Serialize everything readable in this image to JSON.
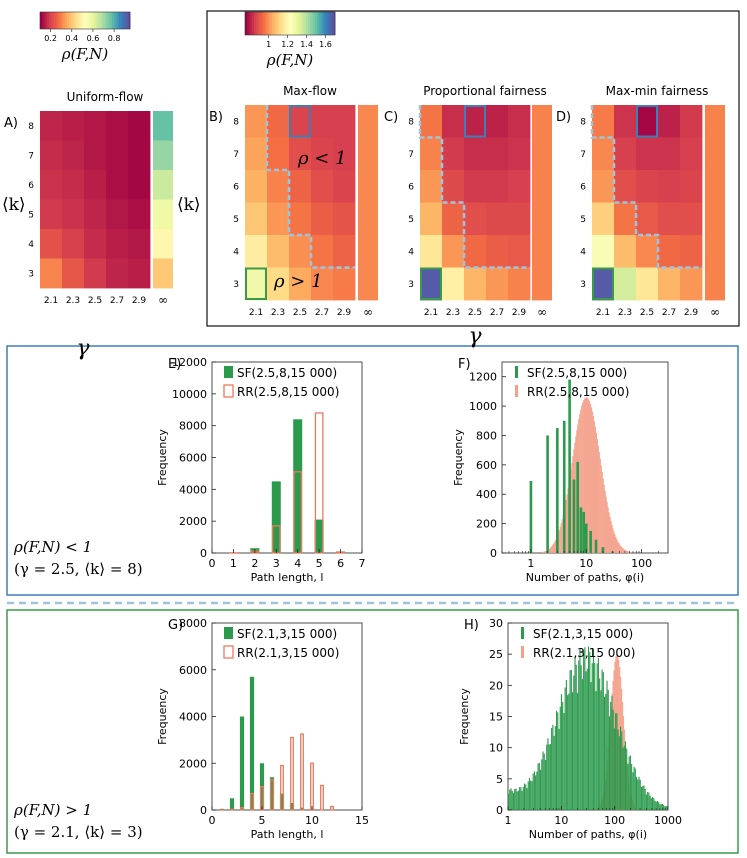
{
  "chart_data": [
    {
      "id": "A",
      "type": "heatmap",
      "panel_letter": "A)",
      "title": "Uniform-flow",
      "xlabel": "γ",
      "ylabel": "⟨k⟩",
      "x_ticks": [
        "2.1",
        "2.3",
        "2.5",
        "2.7",
        "2.9"
      ],
      "inf_label": "∞",
      "y_ticks": [
        "8",
        "7",
        "6",
        "5",
        "4",
        "3"
      ],
      "colorbar": {
        "label": "ρ(F,N)",
        "ticks": [
          "0.2",
          "0.4",
          "0.6",
          "0.8"
        ],
        "range": [
          0.1,
          0.95
        ],
        "colormap": "Spectral"
      },
      "rows": [
        [
          0.15,
          0.14,
          0.13,
          0.12,
          0.11
        ],
        [
          0.16,
          0.15,
          0.13,
          0.12,
          0.11
        ],
        [
          0.17,
          0.16,
          0.14,
          0.12,
          0.11
        ],
        [
          0.18,
          0.17,
          0.15,
          0.13,
          0.12
        ],
        [
          0.22,
          0.19,
          0.16,
          0.14,
          0.13
        ],
        [
          0.3,
          0.23,
          0.18,
          0.15,
          0.14
        ]
      ],
      "inf_column": [
        0.78,
        0.72,
        0.65,
        0.58,
        0.5,
        0.4
      ]
    },
    {
      "id": "B",
      "type": "heatmap",
      "panel_letter": "B)",
      "title": "Max-flow",
      "xlabel": "γ",
      "ylabel": "⟨k⟩",
      "x_ticks": [
        "2.1",
        "2.3",
        "2.5",
        "2.7",
        "2.9"
      ],
      "inf_label": "∞",
      "y_ticks": [
        "8",
        "7",
        "6",
        "5",
        "4",
        "3"
      ],
      "annotations": [
        "ρ < 1",
        "ρ > 1"
      ],
      "colorbar": {
        "label": "ρ(F,N)",
        "ticks": [
          "1",
          "1.2",
          "1.4",
          "1.6"
        ],
        "range": [
          0.75,
          1.7
        ],
        "colormap": "Spectral"
      },
      "rows": [
        [
          1.0,
          0.93,
          0.86,
          0.85,
          0.85
        ],
        [
          1.02,
          0.94,
          0.88,
          0.86,
          0.85
        ],
        [
          1.04,
          0.97,
          0.92,
          0.88,
          0.86
        ],
        [
          1.08,
          1.0,
          0.95,
          0.91,
          0.89
        ],
        [
          1.17,
          1.06,
          0.99,
          0.95,
          0.92
        ],
        [
          1.28,
          1.12,
          1.03,
          0.98,
          0.96
        ]
      ],
      "inf_column": [
        0.98,
        0.98,
        0.98,
        0.98,
        0.98,
        0.98
      ]
    },
    {
      "id": "C",
      "type": "heatmap",
      "panel_letter": "C)",
      "title": "Proportional fairness",
      "x_ticks": [
        "2.1",
        "2.3",
        "2.5",
        "2.7",
        "2.9"
      ],
      "inf_label": "∞",
      "y_ticks": [
        "8",
        "7",
        "6",
        "5",
        "4",
        "3"
      ],
      "rows": [
        [
          0.95,
          0.82,
          0.8,
          0.8,
          0.82
        ],
        [
          0.97,
          0.84,
          0.82,
          0.82,
          0.83
        ],
        [
          1.0,
          0.87,
          0.84,
          0.84,
          0.85
        ],
        [
          1.05,
          0.92,
          0.88,
          0.87,
          0.87
        ],
        [
          1.15,
          1.0,
          0.93,
          0.91,
          0.9
        ],
        [
          1.68,
          1.18,
          1.05,
          1.0,
          0.97
        ]
      ],
      "inf_column": [
        0.97,
        0.97,
        0.97,
        0.97,
        0.97,
        0.97
      ]
    },
    {
      "id": "D",
      "type": "heatmap",
      "panel_letter": "D)",
      "title": "Max-min fairness",
      "x_ticks": [
        "2.1",
        "2.3",
        "2.5",
        "2.7",
        "2.9"
      ],
      "inf_label": "∞",
      "y_ticks": [
        "8",
        "7",
        "6",
        "5",
        "4",
        "3"
      ],
      "rows": [
        [
          0.96,
          0.83,
          0.76,
          0.8,
          0.84
        ],
        [
          0.98,
          0.85,
          0.83,
          0.83,
          0.85
        ],
        [
          1.0,
          0.88,
          0.86,
          0.85,
          0.86
        ],
        [
          1.1,
          0.95,
          0.9,
          0.88,
          0.88
        ],
        [
          1.25,
          1.06,
          0.98,
          0.93,
          0.92
        ],
        [
          1.68,
          1.35,
          1.15,
          1.05,
          1.0
        ]
      ],
      "inf_column": [
        0.97,
        0.97,
        0.97,
        0.97,
        0.97,
        0.97
      ]
    },
    {
      "id": "E",
      "type": "bar",
      "panel_letter": "E)",
      "xlabel": "Path length, l",
      "ylabel": "Frequency",
      "xlim": [
        0,
        7
      ],
      "ylim": [
        0,
        12000
      ],
      "x_ticks": [
        "0",
        "1",
        "2",
        "3",
        "4",
        "5",
        "6",
        "7"
      ],
      "y_ticks": [
        "0",
        "2000",
        "4000",
        "6000",
        "8000",
        "10000",
        "12000"
      ],
      "series": [
        {
          "name": "SF(2.5,8,15 000)",
          "x": [
            1,
            2,
            3,
            4,
            5,
            6
          ],
          "values": [
            30,
            300,
            4500,
            8400,
            2100,
            100
          ]
        },
        {
          "name": "RR(2.5,8,15 000)",
          "x": [
            1,
            2,
            3,
            4,
            5,
            6
          ],
          "values": [
            10,
            120,
            1700,
            5100,
            8800,
            50
          ]
        }
      ]
    },
    {
      "id": "F",
      "type": "bar",
      "panel_letter": "F)",
      "xlabel": "Number of paths, φ(i)",
      "ylabel": "Frequency",
      "xscale": "log",
      "xlim": [
        0.3,
        300
      ],
      "ylim": [
        0,
        1300
      ],
      "x_ticks": [
        "1",
        "10",
        "100"
      ],
      "y_ticks": [
        "0",
        "200",
        "400",
        "600",
        "800",
        "1000",
        "1200"
      ],
      "series": [
        {
          "name": "SF(2.5,8,15 000)",
          "distribution": "spiky",
          "x": [
            1,
            2,
            3,
            4,
            5,
            6,
            7,
            8,
            9,
            10,
            12,
            15,
            20,
            30
          ],
          "values": [
            490,
            800,
            850,
            900,
            1180,
            500,
            620,
            310,
            280,
            200,
            150,
            90,
            40,
            10
          ]
        },
        {
          "name": "RR(2.5,8,15 000)",
          "distribution": "lognormal",
          "peak_x": 10,
          "peak_value": 1060,
          "log_sigma": 0.25
        }
      ]
    },
    {
      "id": "G",
      "type": "bar",
      "panel_letter": "G)",
      "xlabel": "Path length, l",
      "ylabel": "Frequency",
      "xlim": [
        0,
        15
      ],
      "ylim": [
        0,
        8000
      ],
      "x_ticks": [
        "0",
        "5",
        "10",
        "15"
      ],
      "y_ticks": [
        "0",
        "2000",
        "4000",
        "6000",
        "8000"
      ],
      "series": [
        {
          "name": "SF(2.1,3,15 000)",
          "x": [
            1,
            2,
            3,
            4,
            5,
            6,
            7,
            8,
            9,
            10,
            11
          ],
          "values": [
            50,
            500,
            4000,
            5700,
            2000,
            1400,
            700,
            300,
            100,
            40,
            10
          ]
        },
        {
          "name": "RR(2.1,3,15 000)",
          "x": [
            1,
            2,
            3,
            4,
            5,
            6,
            7,
            8,
            9,
            10,
            11,
            12
          ],
          "values": [
            5,
            30,
            100,
            700,
            1000,
            1300,
            1900,
            3100,
            3250,
            2000,
            1050,
            150
          ]
        }
      ]
    },
    {
      "id": "H",
      "type": "bar",
      "panel_letter": "H)",
      "xlabel": "Number of paths, φ(i)",
      "ylabel": "Frequency",
      "xscale": "log",
      "xlim": [
        1,
        1000
      ],
      "ylim": [
        0,
        30
      ],
      "x_ticks": [
        "1",
        "10",
        "100",
        "1000"
      ],
      "y_ticks": [
        "0",
        "5",
        "10",
        "15",
        "20",
        "25",
        "30"
      ],
      "series": [
        {
          "name": "SF(2.1,3,15 000)",
          "distribution": "lognormal",
          "peak_x": 30,
          "peak_value": 23,
          "log_sigma": 0.55
        },
        {
          "name": "RR(2.1,3,15 000)",
          "distribution": "lognormal",
          "peak_x": 110,
          "peak_value": 25,
          "log_sigma": 0.12
        }
      ]
    }
  ],
  "gamma_symbol": "γ",
  "regime_low": {
    "line1": "ρ(F,N) < 1",
    "line2": "(γ = 2.5, ⟨k⟩ = 8)"
  },
  "regime_high": {
    "line1": "ρ(F,N) > 1",
    "line2": "(γ = 2.1, ⟨k⟩ = 3)"
  },
  "colors": {
    "sf": "#2b9a4c",
    "rr_fill": "#f4a08a",
    "rr_edge": "#ec7a5e",
    "blue_box": "#3c7fb6",
    "green_box": "#3a9a4a",
    "dashed": "#9fc3dd"
  }
}
